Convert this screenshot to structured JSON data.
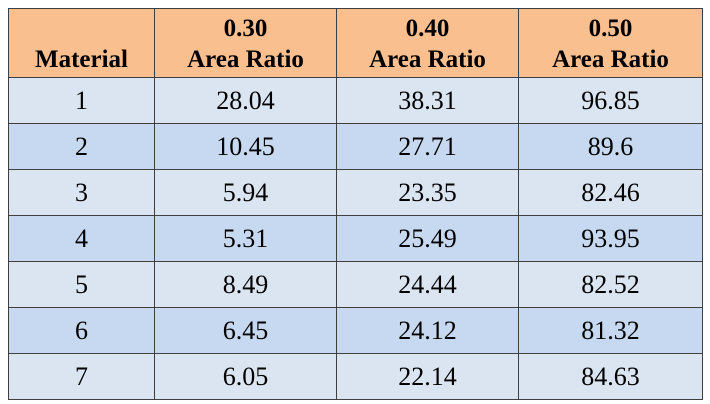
{
  "table": {
    "header": {
      "material": "Material",
      "columns": [
        {
          "ratio": "0.30",
          "label": "Area Ratio"
        },
        {
          "ratio": "0.40",
          "label": "Area Ratio"
        },
        {
          "ratio": "0.50",
          "label": "Area Ratio"
        }
      ]
    },
    "rows": [
      [
        "1",
        "28.04",
        "38.31",
        "96.85"
      ],
      [
        "2",
        "10.45",
        "27.71",
        "89.6"
      ],
      [
        "3",
        "5.94",
        "23.35",
        "82.46"
      ],
      [
        "4",
        "5.31",
        "25.49",
        "93.95"
      ],
      [
        "5",
        "8.49",
        "24.44",
        "82.52"
      ],
      [
        "6",
        "6.45",
        "24.12",
        "81.32"
      ],
      [
        "7",
        "6.05",
        "22.14",
        "84.63"
      ]
    ],
    "colors": {
      "header_bg": "#f9bf8f",
      "row_odd_bg": "#dae5f1",
      "row_even_bg": "#c6d9f0",
      "border": "#3f3f3f"
    }
  }
}
